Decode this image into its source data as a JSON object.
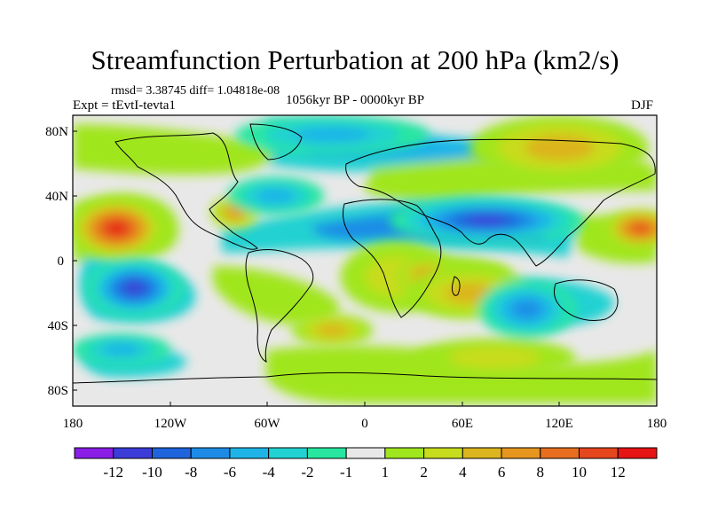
{
  "header": {
    "title": "Streamfunction Perturbation at 200 hPa (km2/s)",
    "stats": "rmsd= 3.38745 diff= 1.04818e-08",
    "expt": "Expt = tEvtI-tevta1",
    "period": "1056kyr BP - 0000kyr BP",
    "season": "DJF"
  },
  "chart_data": {
    "type": "heatmap",
    "title": "Streamfunction Perturbation at 200 hPa (km2/s)",
    "subtitle": "1056kyr BP - 0000kyr BP",
    "units": "km2/s",
    "projection": "cylindrical equidistant",
    "xlim": [
      -180,
      180
    ],
    "ylim": [
      -90,
      90
    ],
    "x_ticks": [
      {
        "value": -180,
        "label": "180"
      },
      {
        "value": -120,
        "label": "120W"
      },
      {
        "value": -60,
        "label": "60W"
      },
      {
        "value": 0,
        "label": "0"
      },
      {
        "value": 60,
        "label": "60E"
      },
      {
        "value": 120,
        "label": "120E"
      },
      {
        "value": 180,
        "label": "180"
      }
    ],
    "y_ticks": [
      {
        "value": 80,
        "label": "80N"
      },
      {
        "value": 40,
        "label": "40N"
      },
      {
        "value": 0,
        "label": "0"
      },
      {
        "value": -40,
        "label": "40S"
      },
      {
        "value": -80,
        "label": "80S"
      }
    ],
    "colorbar": {
      "colors": [
        "#8a1ee6",
        "#3c3cd8",
        "#1f64dc",
        "#1e8ce6",
        "#1eb4e8",
        "#22d2d2",
        "#28e6a0",
        "#e8e8e8",
        "#a0e61e",
        "#c8dc1e",
        "#dcb41e",
        "#e6961e",
        "#e66e1e",
        "#e6461e",
        "#e61414"
      ],
      "tick_labels": [
        "-12",
        "-10",
        "-8",
        "-6",
        "-4",
        "-2",
        "-1",
        "1",
        "2",
        "4",
        "6",
        "8",
        "10",
        "12"
      ]
    },
    "anomalies": [
      {
        "lon": -153,
        "lat": 20,
        "rx": 28,
        "ry": 18,
        "value": 12
      },
      {
        "lon": -142,
        "lat": -17,
        "rx": 30,
        "ry": 18,
        "value": -10
      },
      {
        "lon": -80,
        "lat": 30,
        "rx": 15,
        "ry": 10,
        "value": 6
      },
      {
        "lon": -55,
        "lat": 40,
        "rx": 30,
        "ry": 12,
        "value": -4
      },
      {
        "lon": -150,
        "lat": -55,
        "rx": 30,
        "ry": 10,
        "value": -4
      },
      {
        "lon": -20,
        "lat": -43,
        "rx": 25,
        "ry": 10,
        "value": 4
      },
      {
        "lon": 20,
        "lat": -10,
        "rx": 35,
        "ry": 22,
        "value": 2
      },
      {
        "lon": 38,
        "lat": -10,
        "rx": 18,
        "ry": 12,
        "value": 6
      },
      {
        "lon": 65,
        "lat": -20,
        "rx": 40,
        "ry": 16,
        "value": 4
      },
      {
        "lon": 75,
        "lat": 25,
        "rx": 60,
        "ry": 14,
        "value": -10
      },
      {
        "lon": -20,
        "lat": 78,
        "rx": 60,
        "ry": 12,
        "value": -4
      },
      {
        "lon": 120,
        "lat": 70,
        "rx": 55,
        "ry": 20,
        "value": 4
      },
      {
        "lon": 170,
        "lat": 20,
        "rx": 22,
        "ry": 12,
        "value": 10
      },
      {
        "lon": 100,
        "lat": -30,
        "rx": 30,
        "ry": 18,
        "value": -6
      },
      {
        "lon": 80,
        "lat": -60,
        "rx": 50,
        "ry": 12,
        "value": 2
      }
    ]
  }
}
